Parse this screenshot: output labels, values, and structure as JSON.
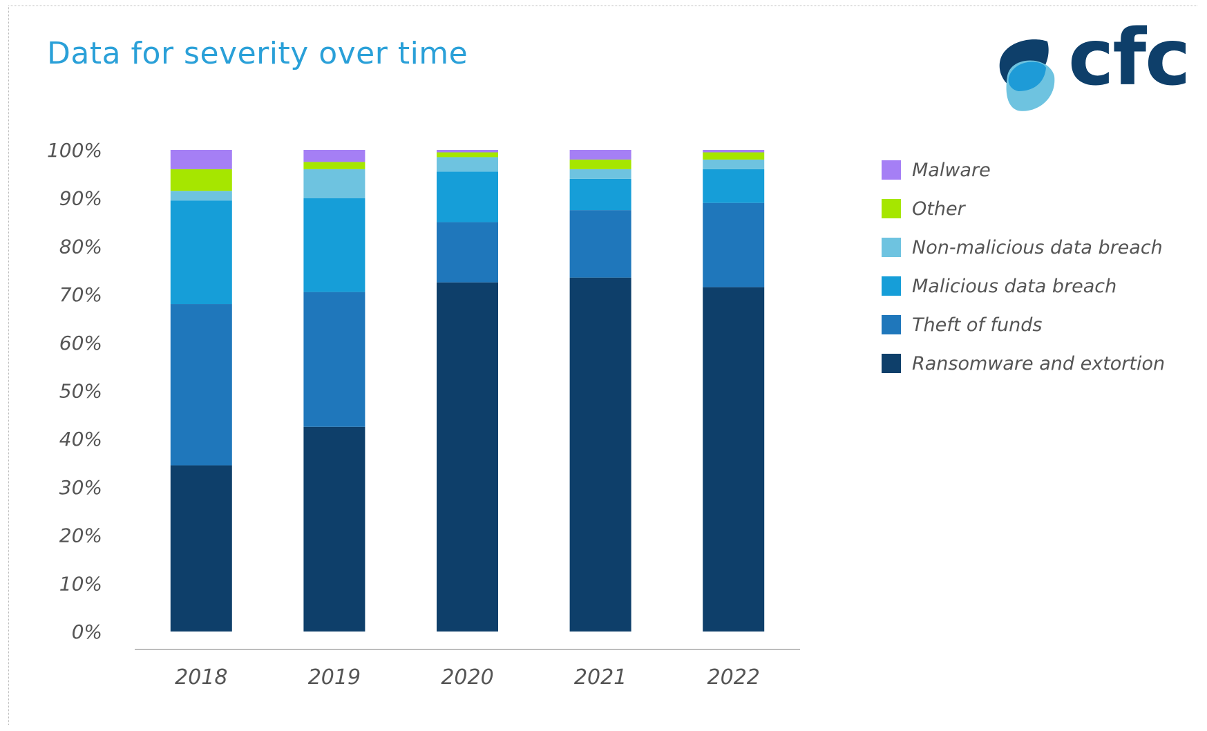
{
  "title": "Data for severity over time",
  "logo": {
    "text": "cfc"
  },
  "colors": {
    "title": "#2aa0d8",
    "logo_dark": "#0e3f6a",
    "logo_mid": "#1e9bd7",
    "logo_light": "#6ec3e0"
  },
  "chart_data": {
    "type": "bar",
    "stacked": true,
    "categories": [
      "2018",
      "2019",
      "2020",
      "2021",
      "2022"
    ],
    "ylim": [
      0,
      100
    ],
    "y_ticks": [
      "0%",
      "10%",
      "20%",
      "30%",
      "40%",
      "50%",
      "60%",
      "70%",
      "80%",
      "90%",
      "100%"
    ],
    "grid": false,
    "legend_position": "right",
    "series": [
      {
        "name": "Ransomware and extortion",
        "color": "#0e3f6a",
        "values": [
          34.5,
          42.5,
          72.5,
          73.5,
          71.5
        ]
      },
      {
        "name": "Theft of funds",
        "color": "#1f77bb",
        "values": [
          33.5,
          28,
          12.5,
          14,
          17.5
        ]
      },
      {
        "name": "Malicious data breach",
        "color": "#169ed8",
        "values": [
          21.5,
          19.5,
          10.5,
          6.5,
          7
        ]
      },
      {
        "name": "Non-malicious data breach",
        "color": "#6ec3e0",
        "values": [
          2,
          6,
          3,
          2,
          2
        ]
      },
      {
        "name": "Other",
        "color": "#a6e600",
        "values": [
          4.5,
          1.5,
          1,
          2,
          1.5
        ]
      },
      {
        "name": "Malware",
        "color": "#a57ff5",
        "values": [
          4,
          2.5,
          0.5,
          2,
          0.5
        ]
      }
    ],
    "legend_order": [
      "Malware",
      "Other",
      "Non-malicious data breach",
      "Malicious data breach",
      "Theft of funds",
      "Ransomware and extortion"
    ]
  }
}
